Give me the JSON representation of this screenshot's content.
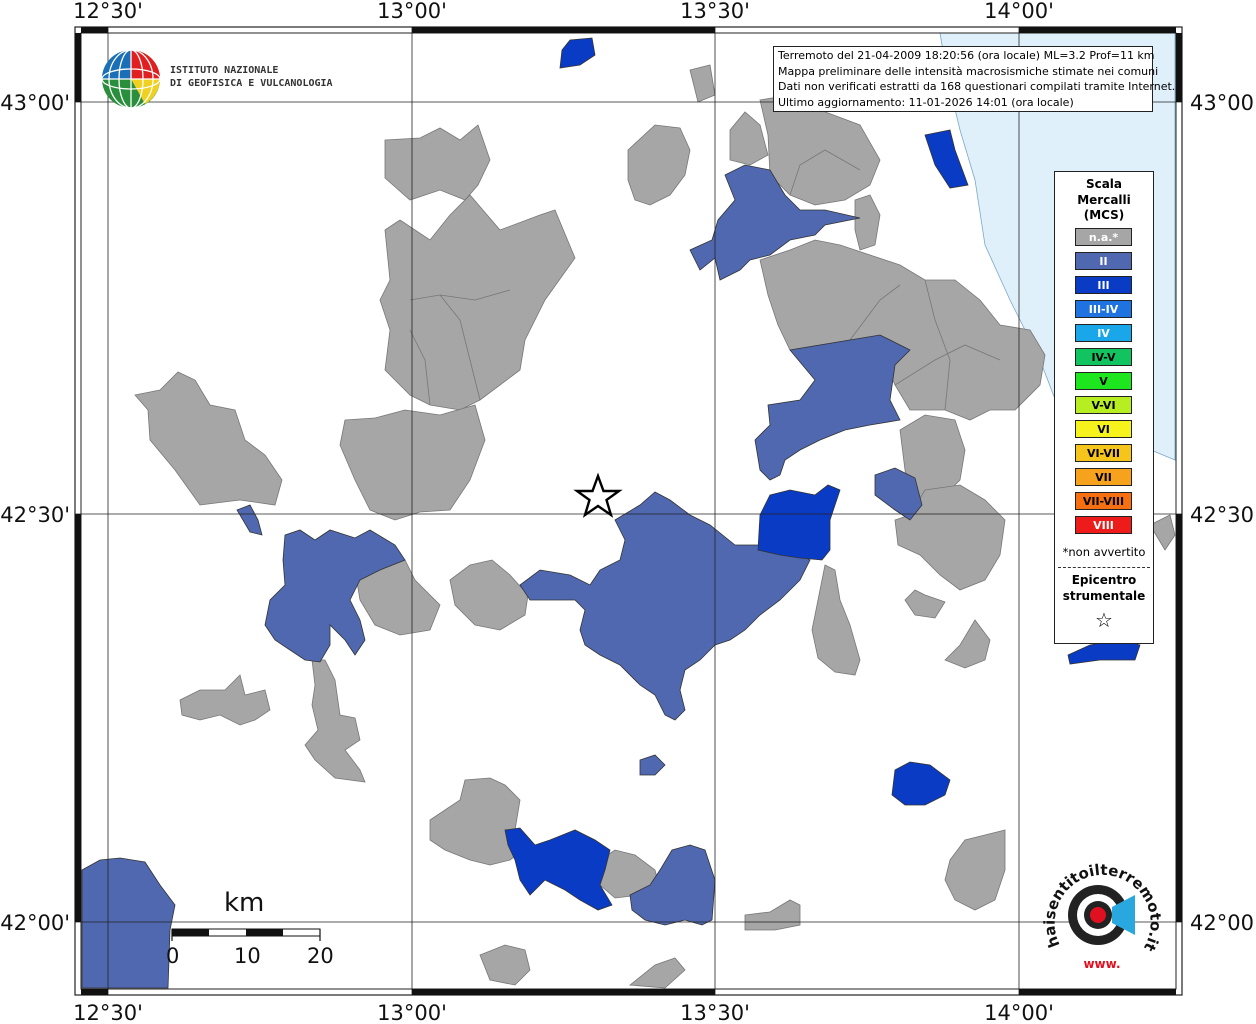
{
  "info": {
    "line1": "Terremoto del 21-04-2009 18:20:56 (ora locale) ML=3.2 Prof=11 km",
    "line2": "Mappa preliminare delle intensità macrosismiche stimate nei comuni",
    "line3": "Dati non verificati estratti da 168 questionari compilati tramite Internet.",
    "line4": "Ultimo aggiornamento: 11-01-2026 14:01 (ora locale)"
  },
  "logo": {
    "line1": "ISTITUTO NAZIONALE",
    "line2": "DI GEOFISICA E VULCANOLOGIA"
  },
  "axes": {
    "top": [
      "12°30'",
      "13°00'",
      "13°30'",
      "14°00'"
    ],
    "bottom": [
      "12°30'",
      "13°00'",
      "13°30'",
      "14°00'"
    ],
    "left": [
      "43°00'",
      "42°30'",
      "42°00'"
    ],
    "right": [
      "43°00'",
      "42°30'",
      "42°00'"
    ]
  },
  "legend": {
    "title1": "Scala",
    "title2": "Mercalli",
    "title3": "(MCS)",
    "items": [
      {
        "label": "n.a.*",
        "color": "#a6a6a6",
        "text_color": "#ffffff"
      },
      {
        "label": "II",
        "color": "#4f68b0",
        "text_color": "#ffffff"
      },
      {
        "label": "III",
        "color": "#0a3bc4",
        "text_color": "#ffffff"
      },
      {
        "label": "III-IV",
        "color": "#1f73e0",
        "text_color": "#ffffff"
      },
      {
        "label": "IV",
        "color": "#1aa7ea",
        "text_color": "#ffffff"
      },
      {
        "label": "IV-V",
        "color": "#12c45f",
        "text_color": "#000000"
      },
      {
        "label": "V",
        "color": "#1ee61e",
        "text_color": "#000000"
      },
      {
        "label": "V-VI",
        "color": "#b6ee22",
        "text_color": "#000000"
      },
      {
        "label": "VI",
        "color": "#f6f21c",
        "text_color": "#000000"
      },
      {
        "label": "VI-VII",
        "color": "#f6c51c",
        "text_color": "#000000"
      },
      {
        "label": "VII",
        "color": "#f6a21c",
        "text_color": "#000000"
      },
      {
        "label": "VII-VIII",
        "color": "#f66f10",
        "text_color": "#000000"
      },
      {
        "label": "VIII",
        "color": "#ee1b1b",
        "text_color": "#ffffff"
      }
    ],
    "note": "*non avvertito",
    "epicenter1": "Epicentro",
    "epicenter2": "strumentale",
    "epicenter_symbol": "☆"
  },
  "scalebar": {
    "unit": "km",
    "ticks": [
      "0",
      "10",
      "20"
    ]
  },
  "brand": {
    "text": "haisentitoilterremoto.it",
    "url": "www."
  },
  "colors": {
    "gray": "#a6a6a6",
    "ii": "#4f68b0",
    "iii": "#0a3bc4",
    "sea": "#dff0fb"
  }
}
